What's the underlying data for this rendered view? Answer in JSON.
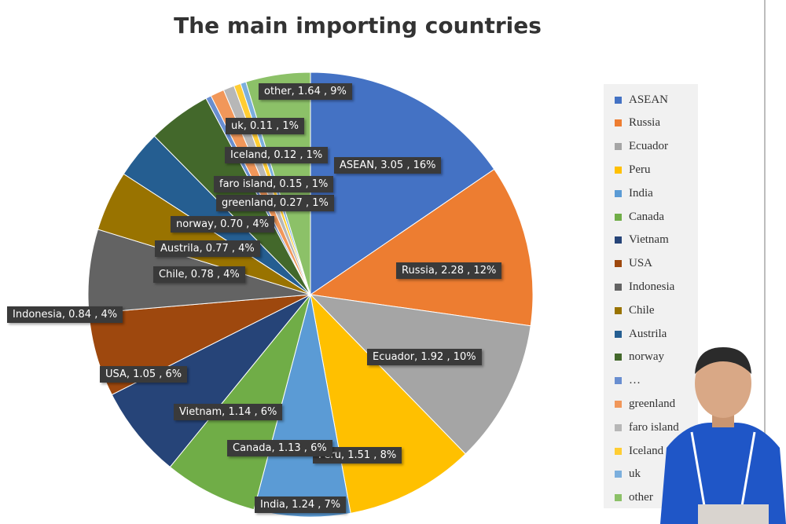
{
  "chart_data": {
    "type": "pie",
    "title": "The main importing countries",
    "legend_position": "right",
    "slices": [
      {
        "name": "ASEAN",
        "value": 3.05,
        "percent": "16%",
        "label": "ASEAN, 3.05 , 16%",
        "color": "#4472C4"
      },
      {
        "name": "Russia",
        "value": 2.28,
        "percent": "12%",
        "label": "Russia, 2.28 , 12%",
        "color": "#ED7D31"
      },
      {
        "name": "Ecuador",
        "value": 1.92,
        "percent": "10%",
        "label": "Ecuador, 1.92 , 10%",
        "color": "#A5A5A5"
      },
      {
        "name": "Peru",
        "value": 1.51,
        "percent": "8%",
        "label": "Peru, 1.51 , 8%",
        "color": "#FFC000"
      },
      {
        "name": "India",
        "value": 1.24,
        "percent": "7%",
        "label": "India, 1.24 , 7%",
        "color": "#5B9BD5"
      },
      {
        "name": "Canada",
        "value": 1.13,
        "percent": "6%",
        "label": "Canada, 1.13 , 6%",
        "color": "#70AD47"
      },
      {
        "name": "Vietnam",
        "value": 1.14,
        "percent": "6%",
        "label": "Vietnam, 1.14 , 6%",
        "color": "#264478"
      },
      {
        "name": "USA",
        "value": 1.05,
        "percent": "6%",
        "label": "USA, 1.05 , 6%",
        "color": "#9E480E"
      },
      {
        "name": "Indonesia",
        "value": 0.84,
        "percent": "4%",
        "label": "Indonesia, 0.84 , 4%",
        "color": "#636363"
      },
      {
        "name": "Chile",
        "value": 0.78,
        "percent": "4%",
        "label": "Chile, 0.78 , 4%",
        "color": "#997300"
      },
      {
        "name": "Austrila",
        "value": 0.77,
        "percent": "4%",
        "label": "Austrila, 0.77 , 4%",
        "color": "#255E91"
      },
      {
        "name": "norway",
        "value": 0.7,
        "percent": "4%",
        "label": "norway, 0.70 , 4%",
        "color": "#43682B"
      },
      {
        "name": "…",
        "value": null,
        "percent": "",
        "label": "",
        "color": "#698ED0"
      },
      {
        "name": "greenland",
        "value": 0.27,
        "percent": "1%",
        "label": "greenland, 0.27 , 1%",
        "color": "#F1975A"
      },
      {
        "name": "faro island",
        "value": 0.15,
        "percent": "1%",
        "label": "faro island, 0.15 , 1%",
        "color": "#B7B7B7"
      },
      {
        "name": "Iceland",
        "value": 0.12,
        "percent": "1%",
        "label": "Iceland, 0.12 , 1%",
        "color": "#FFCD33"
      },
      {
        "name": "uk",
        "value": 0.11,
        "percent": "1%",
        "label": "uk, 0.11 , 1%",
        "color": "#7CAFDD"
      },
      {
        "name": "other",
        "value": 1.64,
        "percent": "9%",
        "label": "other, 1.64 , 9%",
        "color": "#8CC168"
      }
    ]
  }
}
